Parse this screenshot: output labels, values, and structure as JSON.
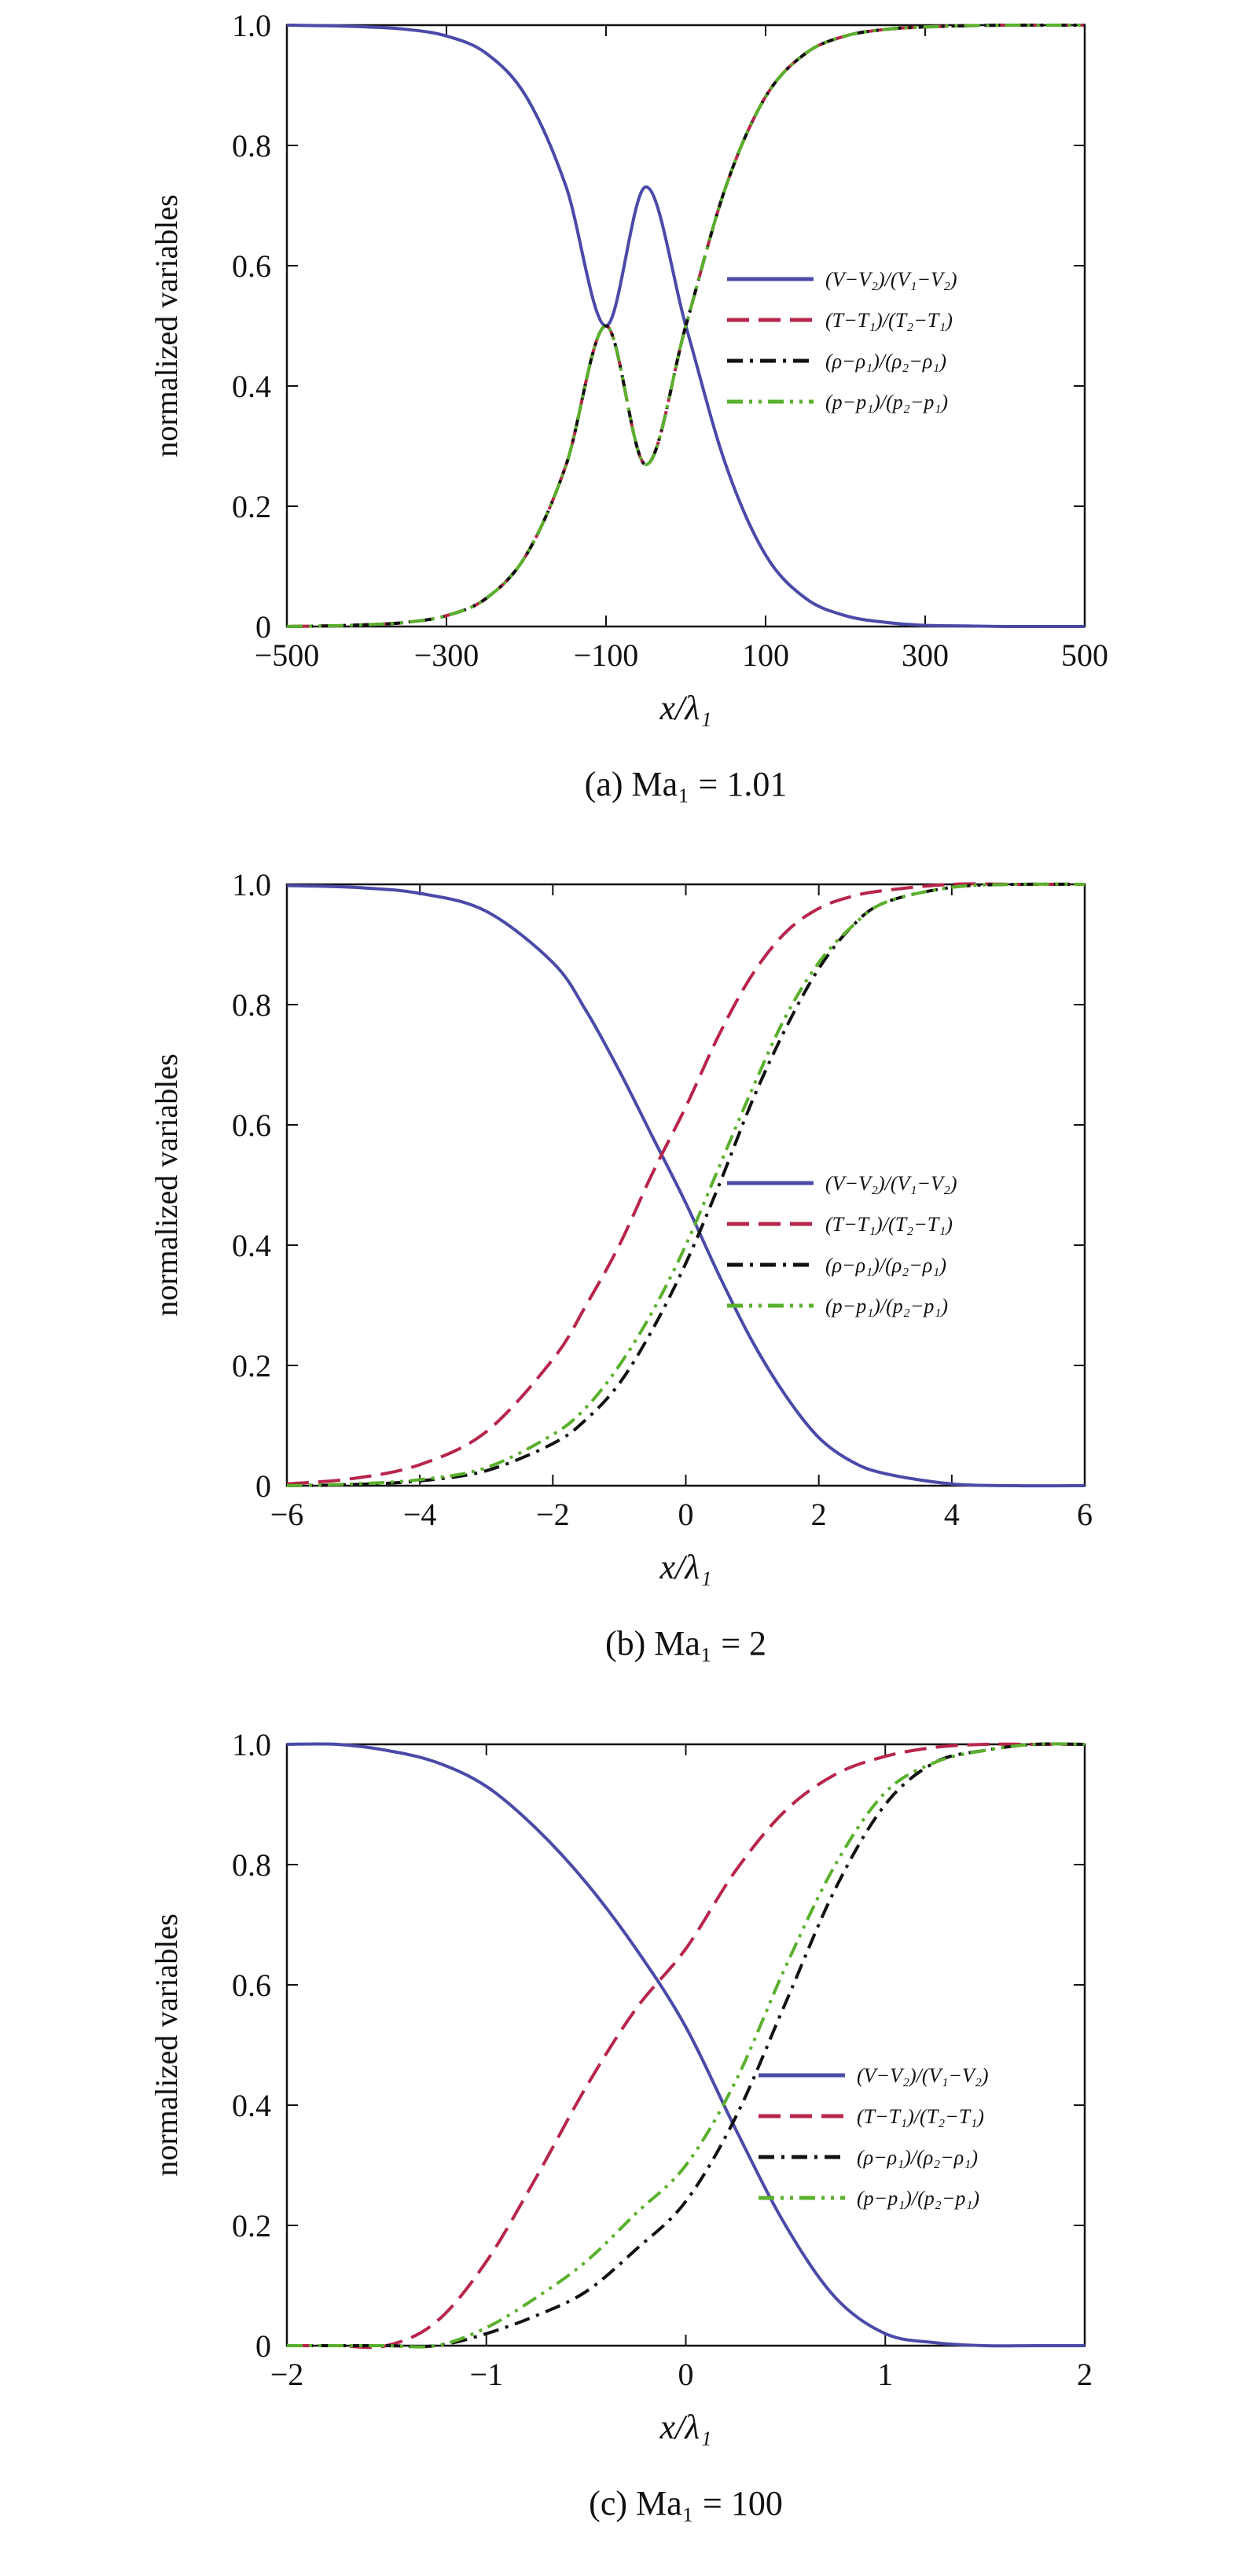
{
  "chart_data": [
    {
      "type": "line",
      "caption": "(a) Ma₁ = 1.01",
      "xlabel": "x/λ₁",
      "ylabel": "normalized variables",
      "xlim": [
        -500,
        500
      ],
      "ylim": [
        0,
        1
      ],
      "xticks": [
        -500,
        -300,
        -100,
        100,
        300,
        500
      ],
      "xtick_labels": [
        "−500",
        "−300",
        "−100",
        "100",
        "300",
        "500"
      ],
      "yticks": [
        0,
        0.2,
        0.4,
        0.6,
        0.8,
        1.0
      ],
      "ytick_labels": [
        "0",
        "0.2",
        "0.4",
        "0.6",
        "0.8",
        "1.0"
      ],
      "grid": false,
      "legend_position": "center-right",
      "x": [
        -500,
        -450,
        -400,
        -350,
        -300,
        -250,
        -200,
        -150,
        -100,
        -50,
        0,
        50,
        100,
        150,
        200,
        250,
        300,
        350,
        400,
        450,
        500
      ],
      "series": [
        {
          "name": "(V−V₂)/(V₁−V₂)",
          "color": "#4a4aa8",
          "dash": "solid",
          "values": [
            1.0,
            0.999,
            0.997,
            0.993,
            0.982,
            0.953,
            0.881,
            0.731,
            0.5,
            0.731,
            0.5,
            0.269,
            0.119,
            0.047,
            0.018,
            0.007,
            0.002,
            0.001,
            0.0,
            0.0,
            0.0
          ]
        },
        {
          "name": "(T−T₁)/(T₂−T₁)",
          "color": "#b8254a",
          "dash": "long-dash",
          "values": [
            0.0,
            0.001,
            0.003,
            0.007,
            0.018,
            0.047,
            0.119,
            0.269,
            0.5,
            0.269,
            0.5,
            0.731,
            0.881,
            0.953,
            0.982,
            0.993,
            0.997,
            0.999,
            1.0,
            1.0,
            1.0
          ]
        },
        {
          "name": "(ρ−ρ₁)/(ρ₂−ρ₁)",
          "color": "#111111",
          "dash": "dash-dot",
          "values": [
            0.0,
            0.001,
            0.003,
            0.007,
            0.018,
            0.047,
            0.119,
            0.269,
            0.5,
            0.269,
            0.5,
            0.731,
            0.881,
            0.953,
            0.982,
            0.993,
            0.997,
            0.999,
            1.0,
            1.0,
            1.0
          ]
        },
        {
          "name": "(p−p₁)/(p₂−p₁)",
          "color": "#5ab02c",
          "dash": "dash-dot-dot",
          "values": [
            0.0,
            0.001,
            0.003,
            0.007,
            0.018,
            0.047,
            0.119,
            0.269,
            0.5,
            0.269,
            0.5,
            0.731,
            0.881,
            0.953,
            0.982,
            0.993,
            0.997,
            0.999,
            1.0,
            1.0,
            1.0
          ]
        }
      ]
    },
    {
      "type": "line",
      "caption": "(b) Ma₁ = 2",
      "xlabel": "x/λ₁",
      "ylabel": "normalized variables",
      "xlim": [
        -6,
        6
      ],
      "ylim": [
        0,
        1
      ],
      "xticks": [
        -6,
        -4,
        -2,
        0,
        2,
        4,
        6
      ],
      "xtick_labels": [
        "−6",
        "−4",
        "−2",
        "0",
        "2",
        "4",
        "6"
      ],
      "yticks": [
        0,
        0.2,
        0.4,
        0.6,
        0.8,
        1.0
      ],
      "ytick_labels": [
        "0",
        "0.2",
        "0.4",
        "0.6",
        "0.8",
        "1.0"
      ],
      "grid": false,
      "legend_position": "center-right",
      "x": [
        -6,
        -5,
        -4,
        -3,
        -2,
        -1.5,
        -1,
        -0.5,
        0,
        0.5,
        1,
        1.5,
        2,
        2.5,
        3,
        4,
        5,
        6
      ],
      "series": [
        {
          "name": "(V−V₂)/(V₁−V₂)",
          "color": "#4a4aa8",
          "dash": "solid",
          "values": [
            0.998,
            0.995,
            0.985,
            0.955,
            0.87,
            0.79,
            0.69,
            0.58,
            0.47,
            0.35,
            0.24,
            0.15,
            0.08,
            0.04,
            0.02,
            0.003,
            0.0,
            0.0
          ]
        },
        {
          "name": "(T−T₁)/(T₂−T₁)",
          "color": "#b8254a",
          "dash": "long-dash",
          "values": [
            0.003,
            0.012,
            0.035,
            0.09,
            0.21,
            0.3,
            0.4,
            0.52,
            0.63,
            0.75,
            0.85,
            0.92,
            0.96,
            0.98,
            0.99,
            1.0,
            1.0,
            1.0
          ]
        },
        {
          "name": "(ρ−ρ₁)/(ρ₂−ρ₁)",
          "color": "#111111",
          "dash": "dash-dot",
          "values": [
            0.0,
            0.002,
            0.008,
            0.025,
            0.07,
            0.11,
            0.17,
            0.26,
            0.37,
            0.5,
            0.64,
            0.76,
            0.86,
            0.93,
            0.97,
            0.995,
            1.0,
            1.0
          ]
        },
        {
          "name": "(p−p₁)/(p₂−p₁)",
          "color": "#5ab02c",
          "dash": "dash-dot-dot",
          "values": [
            0.0,
            0.003,
            0.01,
            0.03,
            0.085,
            0.13,
            0.2,
            0.29,
            0.4,
            0.53,
            0.66,
            0.78,
            0.87,
            0.93,
            0.97,
            0.995,
            1.0,
            1.0
          ]
        }
      ]
    },
    {
      "type": "line",
      "caption": "(c) Ma₁ = 100",
      "xlabel": "x/λ₁",
      "ylabel": "normalized variables",
      "xlim": [
        -2,
        2
      ],
      "ylim": [
        0,
        1
      ],
      "xticks": [
        -2,
        -1,
        0,
        1,
        2
      ],
      "xtick_labels": [
        "−2",
        "−1",
        "0",
        "1",
        "2"
      ],
      "yticks": [
        0,
        0.2,
        0.4,
        0.6,
        0.8,
        1.0
      ],
      "ytick_labels": [
        "0",
        "0.2",
        "0.4",
        "0.6",
        "0.8",
        "1.0"
      ],
      "grid": false,
      "legend_position": "center-right",
      "x": [
        -2,
        -1.75,
        -1.5,
        -1.25,
        -1,
        -0.75,
        -0.5,
        -0.25,
        0,
        0.25,
        0.5,
        0.75,
        1,
        1.25,
        1.5,
        1.75,
        2
      ],
      "series": [
        {
          "name": "(V−V₂)/(V₁−V₂)",
          "color": "#4a4aa8",
          "dash": "solid",
          "values": [
            1.0,
            1.0,
            0.99,
            0.97,
            0.93,
            0.86,
            0.77,
            0.66,
            0.53,
            0.36,
            0.2,
            0.08,
            0.02,
            0.005,
            0.0,
            0.0,
            0.0
          ]
        },
        {
          "name": "(T−T₁)/(T₂−T₁)",
          "color": "#b8254a",
          "dash": "long-dash",
          "values": [
            0.0,
            0.0,
            0.0,
            0.04,
            0.14,
            0.28,
            0.43,
            0.56,
            0.66,
            0.79,
            0.89,
            0.95,
            0.98,
            0.995,
            1.0,
            1.0,
            1.0
          ]
        },
        {
          "name": "(ρ−ρ₁)/(ρ₂−ρ₁)",
          "color": "#111111",
          "dash": "dash-dot",
          "values": [
            0.0,
            0.0,
            0.0,
            0.0,
            0.02,
            0.05,
            0.09,
            0.16,
            0.24,
            0.38,
            0.57,
            0.76,
            0.9,
            0.97,
            0.99,
            1.0,
            1.0
          ]
        },
        {
          "name": "(p−p₁)/(p₂−p₁)",
          "color": "#5ab02c",
          "dash": "dash-dot-dot",
          "values": [
            0.0,
            0.0,
            0.0,
            0.0,
            0.03,
            0.08,
            0.14,
            0.22,
            0.3,
            0.44,
            0.63,
            0.8,
            0.92,
            0.97,
            0.99,
            1.0,
            1.0
          ]
        }
      ]
    }
  ]
}
